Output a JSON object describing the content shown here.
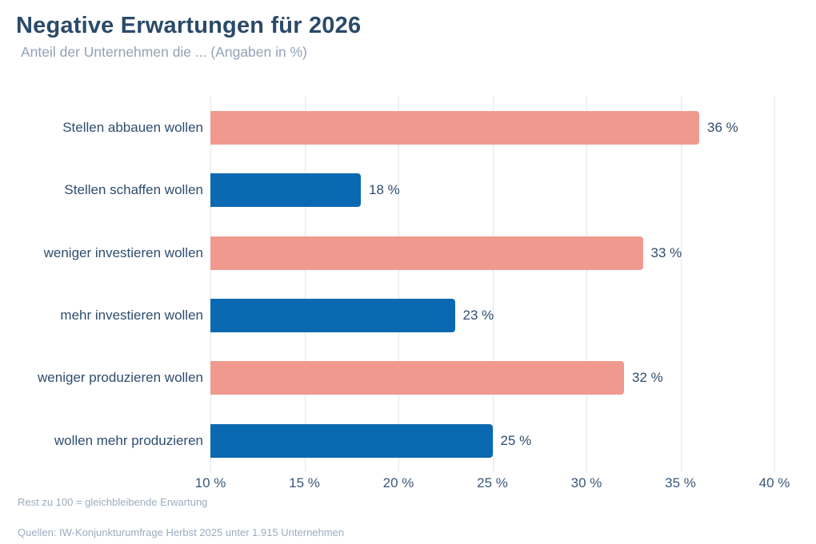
{
  "title": "Negative Erwartungen für 2026",
  "subtitle": "Anteil der Unternehmen die ... (Angaben in %)",
  "footnote": "Rest zu 100 = gleichbleibende Erwartung",
  "source": "Quellen: IW-Konjunkturumfrage Herbst 2025 unter 1.915 Unternehmen",
  "colors": {
    "negative_bar": "#f0998f",
    "positive_bar": "#0b69b2",
    "heading_text": "#2b4a69",
    "label_text": "#2e4d6e",
    "muted_text": "#9badbf",
    "gridline": "#e3e5e8"
  },
  "chart_data": {
    "type": "bar",
    "orientation": "horizontal",
    "title": "Negative Erwartungen für 2026",
    "subtitle": "Anteil der Unternehmen die ... (Angaben in %)",
    "categories": [
      "Stellen abbauen wollen",
      "Stellen schaffen wollen",
      "weniger investieren wollen",
      "mehr investieren wollen",
      "weniger produzieren wollen",
      "wollen mehr produzieren"
    ],
    "values": [
      36,
      18,
      33,
      23,
      32,
      25
    ],
    "value_labels": [
      "36 %",
      "18 %",
      "33 %",
      "23 %",
      "32 %",
      "25 %"
    ],
    "bar_colors": [
      "#f0998f",
      "#0b69b2",
      "#f0998f",
      "#0b69b2",
      "#f0998f",
      "#0b69b2"
    ],
    "xlabel": "",
    "ylabel": "",
    "xlim": [
      10,
      40
    ],
    "x_tick_values": [
      10,
      15,
      20,
      25,
      30,
      35,
      40
    ],
    "x_tick_labels": [
      "10 %",
      "15 %",
      "20 %",
      "25 %",
      "30 %",
      "35 %",
      "40 %"
    ],
    "grid": true,
    "legend": false
  }
}
